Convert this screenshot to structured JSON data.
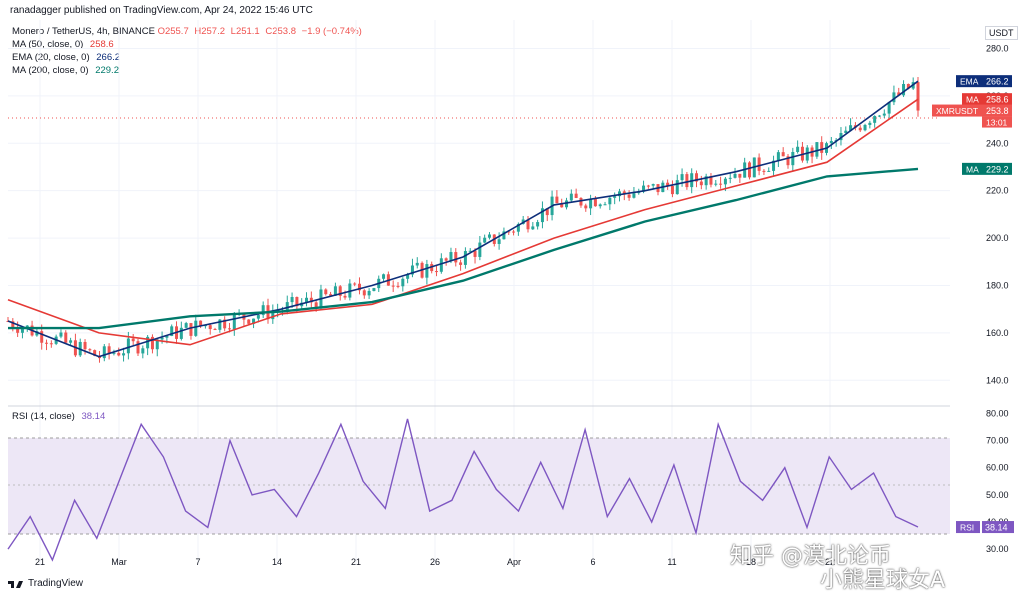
{
  "header": {
    "publisher": "ranadagger published on TradingView.com, Apr 24, 2022 15:46 UTC"
  },
  "legend": {
    "symbol": "Monero / TetherUS, 4h, BINANCE",
    "ohlc": {
      "open": "O255.7",
      "high": "H257.2",
      "low": "L251.1",
      "close": "C253.8",
      "change": "−1.9 (−0.74%)"
    },
    "indicators": [
      {
        "label": "MA (50, close, 0)",
        "value": "258.6",
        "color": "#e53935"
      },
      {
        "label": "EMA (20, close, 0)",
        "value": "266.2",
        "color": "#0d2e7a"
      },
      {
        "label": "MA (200, close, 0)",
        "value": "229.2",
        "color": "#00796b"
      }
    ]
  },
  "rsi_legend": {
    "label": "RSI (14, close)",
    "value": "38.14",
    "color": "#7e57c2"
  },
  "price_axis": {
    "currency": "USDT",
    "ticks": [
      "280.0",
      "260.0",
      "240.0",
      "220.0",
      "200.0",
      "180.0",
      "160.0",
      "140.0"
    ]
  },
  "rsi_axis": {
    "ticks": [
      "80.00",
      "70.00",
      "60.00",
      "50.00",
      "40.00",
      "30.00"
    ]
  },
  "price_tags": [
    {
      "label": "EMA",
      "value": "266.2",
      "color": "#0d2e7a"
    },
    {
      "label": "MA",
      "value": "258.6",
      "color": "#e53935"
    },
    {
      "label": "XMRUSDT",
      "value": "253.8",
      "sub": "13:01",
      "color": "#ef5350"
    },
    {
      "label": "MA",
      "value": "229.2",
      "color": "#00796b"
    }
  ],
  "rsi_tag": {
    "label": "RSI",
    "value": "38.14",
    "color": "#7e57c2"
  },
  "time_axis": [
    "21",
    "Mar",
    "7",
    "14",
    "21",
    "26",
    "Apr",
    "6",
    "11",
    "18",
    "22"
  ],
  "footer": {
    "brand": "TradingView"
  },
  "watermarks": {
    "line1": "知乎 @漠北论币",
    "line2": "小熊星球女A"
  },
  "colors": {
    "up": "#26a69a",
    "down": "#ef5350",
    "ema20": "#0d2e7a",
    "ma50": "#e53935",
    "ma200": "#00796b",
    "rsi": "#7e57c2"
  },
  "chart_data": {
    "type": "line",
    "title": "Monero / TetherUS, 4h, BINANCE",
    "x": [
      "21",
      "Mar",
      "7",
      "14",
      "21",
      "26",
      "Apr",
      "6",
      "11",
      "18",
      "22"
    ],
    "series": [
      {
        "name": "MA (50, close, 0)",
        "values": [
          174,
          160,
          155,
          168,
          172,
          185,
          200,
          212,
          222,
          232,
          258.6
        ]
      },
      {
        "name": "EMA (20, close, 0)",
        "values": [
          165,
          150,
          162,
          170,
          180,
          192,
          214,
          220,
          228,
          238,
          266.2
        ]
      },
      {
        "name": "MA (200, close, 0)",
        "values": [
          162,
          162,
          167,
          169,
          173,
          182,
          195,
          207,
          216,
          226,
          229.2
        ]
      }
    ],
    "last_close": 253.8,
    "ylim": [
      130,
      292
    ],
    "rsi": {
      "name": "RSI (14, close)",
      "last": 38.14,
      "ylim": [
        26,
        82
      ],
      "band": [
        30,
        70
      ],
      "values": [
        30,
        42,
        26,
        48,
        34,
        55,
        76,
        64,
        44,
        38,
        70,
        50,
        52,
        42,
        58,
        76,
        55,
        45,
        78,
        44,
        48,
        66,
        52,
        44,
        62,
        45,
        74,
        42,
        56,
        40,
        61,
        36,
        76,
        55,
        48,
        60,
        38,
        64,
        52,
        58,
        42,
        38.14
      ]
    },
    "grid": true
  }
}
